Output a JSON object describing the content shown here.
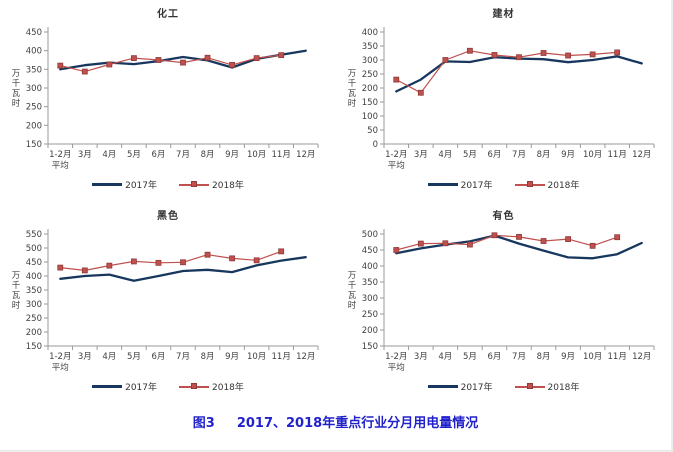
{
  "caption": {
    "label": "图3",
    "title": "2017、2018年重点行业分月用电量情况",
    "color": "#2222CC"
  },
  "colors": {
    "line_2017": "#17375E",
    "line_2018": "#C0504D",
    "marker_border_2018": "#8E3B39",
    "axis": "#9A9A9A",
    "tick_text": "#404040"
  },
  "legend": {
    "label_2017": "2017年",
    "label_2018": "2018年"
  },
  "chart_data": {
    "note": "four small multiples, monthly electricity consumption by key industry",
    "unit_ylabel": "万千瓦时",
    "x_categories": [
      "1-2月|平均",
      "3月",
      "4月",
      "5月",
      "6月",
      "7月",
      "8月",
      "9月",
      "10月",
      "11月",
      "12月"
    ]
  },
  "charts": [
    {
      "id": "chemical",
      "type": "line",
      "title": "化工",
      "ylabel": "万千瓦时",
      "ymin": 150,
      "ymax": 450,
      "ystep": 50,
      "categories": [
        "1-2月|平均",
        "3月",
        "4月",
        "5月",
        "6月",
        "7月",
        "8月",
        "9月",
        "10月",
        "11月",
        "12月"
      ],
      "series": [
        {
          "name": "2017年",
          "color": "#17375E",
          "marker": "none",
          "values": [
            350,
            361,
            368,
            364,
            372,
            383,
            374,
            355,
            378,
            389,
            400
          ]
        },
        {
          "name": "2018年",
          "color": "#C0504D",
          "marker": "square",
          "values": [
            360,
            344,
            363,
            380,
            375,
            368,
            381,
            362,
            380,
            388
          ]
        }
      ]
    },
    {
      "id": "building-materials",
      "type": "line",
      "title": "建材",
      "ylabel": "万千瓦时",
      "ymin": 0,
      "ymax": 400,
      "ystep": 50,
      "categories": [
        "1-2月|平均",
        "3月",
        "4月",
        "5月",
        "6月",
        "7月",
        "8月",
        "9月",
        "10月",
        "11月",
        "12月"
      ],
      "series": [
        {
          "name": "2017年",
          "color": "#17375E",
          "marker": "none",
          "values": [
            188,
            230,
            295,
            293,
            310,
            305,
            303,
            292,
            300,
            313,
            288
          ]
        },
        {
          "name": "2018年",
          "color": "#C0504D",
          "marker": "square",
          "values": [
            230,
            183,
            300,
            333,
            318,
            310,
            325,
            316,
            320,
            327
          ]
        }
      ]
    },
    {
      "id": "ferrous",
      "type": "line",
      "title": "黑色",
      "ylabel": "万千瓦时",
      "ymin": 150,
      "ymax": 550,
      "ystep": 50,
      "categories": [
        "1-2月|平均",
        "3月",
        "4月",
        "5月",
        "6月",
        "7月",
        "8月",
        "9月",
        "10月",
        "11月",
        "12月"
      ],
      "series": [
        {
          "name": "2017年",
          "color": "#17375E",
          "marker": "none",
          "values": [
            390,
            400,
            405,
            383,
            400,
            418,
            422,
            414,
            438,
            455,
            467
          ]
        },
        {
          "name": "2018年",
          "color": "#C0504D",
          "marker": "square",
          "values": [
            430,
            420,
            437,
            452,
            447,
            449,
            476,
            463,
            456,
            488
          ]
        }
      ]
    },
    {
      "id": "nonferrous",
      "type": "line",
      "title": "有色",
      "ylabel": "万千瓦时",
      "ymin": 150,
      "ymax": 500,
      "ystep": 50,
      "categories": [
        "1-2月|平均",
        "3月",
        "4月",
        "5月",
        "6月",
        "7月",
        "8月",
        "9月",
        "10月",
        "11月",
        "12月"
      ],
      "series": [
        {
          "name": "2017年",
          "color": "#17375E",
          "marker": "none",
          "values": [
            440,
            455,
            467,
            477,
            495,
            470,
            448,
            427,
            424,
            437,
            472
          ]
        },
        {
          "name": "2018年",
          "color": "#C0504D",
          "marker": "square",
          "values": [
            450,
            470,
            471,
            467,
            496,
            491,
            478,
            484,
            463,
            490
          ]
        }
      ]
    }
  ]
}
